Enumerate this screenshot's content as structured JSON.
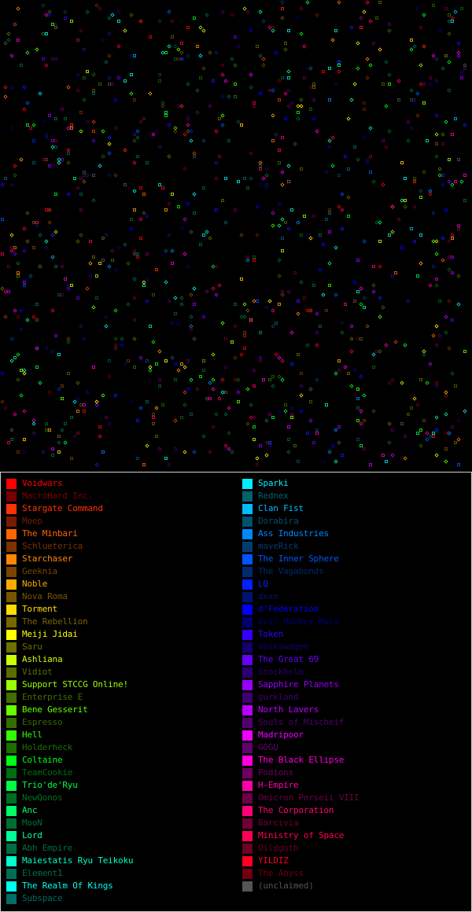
{
  "legend": {
    "left": [
      {
        "name": "Voidwars",
        "color": "#ff0000"
      },
      {
        "name": "MacroHard Inc.",
        "color": "#7a0000"
      },
      {
        "name": "Stargate Command",
        "color": "#ff3300"
      },
      {
        "name": "Moep",
        "color": "#7a1a00"
      },
      {
        "name": "The Minbari",
        "color": "#ff6600"
      },
      {
        "name": "Schlueterica",
        "color": "#7a3300"
      },
      {
        "name": "Starchaser",
        "color": "#ff8800"
      },
      {
        "name": "Geeknia",
        "color": "#7a4400"
      },
      {
        "name": "Noble",
        "color": "#ffaa00"
      },
      {
        "name": "Nova Roma",
        "color": "#7a5500"
      },
      {
        "name": "Torment",
        "color": "#ffdd00"
      },
      {
        "name": "The Rebellion",
        "color": "#7a6600"
      },
      {
        "name": "Meiji Jidai",
        "color": "#ffff00"
      },
      {
        "name": "Saru",
        "color": "#6e7000"
      },
      {
        "name": "Ashliana",
        "color": "#ccff00"
      },
      {
        "name": "Vidiot",
        "color": "#5a6e00"
      },
      {
        "name": "Support STCCG Online!",
        "color": "#99ff00"
      },
      {
        "name": "Enterprise E",
        "color": "#446e00"
      },
      {
        "name": "Bene Gesserit",
        "color": "#66ff00"
      },
      {
        "name": "Espresso",
        "color": "#336e00"
      },
      {
        "name": "Hell",
        "color": "#33ff00"
      },
      {
        "name": "Holderheck",
        "color": "#1f6e00"
      },
      {
        "name": "Coltaine",
        "color": "#00ff11"
      },
      {
        "name": "TeamCookie",
        "color": "#006e10"
      },
      {
        "name": "Trio'de'Ryu",
        "color": "#00ff44"
      },
      {
        "name": "NewQonos",
        "color": "#006e20"
      },
      {
        "name": "Anc",
        "color": "#00ff66"
      },
      {
        "name": "MooN",
        "color": "#006e33"
      },
      {
        "name": "Lord",
        "color": "#00ff99"
      },
      {
        "name": "Abh Empire",
        "color": "#006e44"
      },
      {
        "name": "Maiestatis Ryu Teikoku",
        "color": "#00ffcc"
      },
      {
        "name": "Element1",
        "color": "#006e55"
      },
      {
        "name": "The Realm Of Kings",
        "color": "#00ffee"
      },
      {
        "name": "Subspace",
        "color": "#006e66"
      }
    ],
    "right": [
      {
        "name": "Sparki",
        "color": "#00eeff"
      },
      {
        "name": "Rednex",
        "color": "#00626e"
      },
      {
        "name": "Clan Fist",
        "color": "#00bbff"
      },
      {
        "name": "Dorabira",
        "color": "#00506e"
      },
      {
        "name": "Ass Industries",
        "color": "#0088ff"
      },
      {
        "name": "maveRick",
        "color": "#003d6e"
      },
      {
        "name": "The Inner Sphere",
        "color": "#0055ff"
      },
      {
        "name": "The Vagabonds",
        "color": "#00296e"
      },
      {
        "name": "LQ",
        "color": "#0022ff"
      },
      {
        "name": "dxxo",
        "color": "#00146e"
      },
      {
        "name": "d'Federation",
        "color": "#0000ff"
      },
      {
        "name": "Evil Monkey Mojo",
        "color": "#00006e"
      },
      {
        "name": "Token",
        "color": "#3300ff"
      },
      {
        "name": "Volkswagen",
        "color": "#14006e"
      },
      {
        "name": "The Great 69",
        "color": "#6600ff"
      },
      {
        "name": "Stockholm",
        "color": "#29006e"
      },
      {
        "name": "Sapphire Planets",
        "color": "#9900ff"
      },
      {
        "name": "gurkland",
        "color": "#3d006e"
      },
      {
        "name": "North Lavers",
        "color": "#bb00ff"
      },
      {
        "name": "Souls of Mischeif",
        "color": "#50006e"
      },
      {
        "name": "Madripoor",
        "color": "#ee00ff"
      },
      {
        "name": "GOGU",
        "color": "#62006e"
      },
      {
        "name": "The Black Ellipse",
        "color": "#ff00dd"
      },
      {
        "name": "Podions",
        "color": "#6e005e"
      },
      {
        "name": "H-Empire",
        "color": "#ff00aa"
      },
      {
        "name": "Omicron Perseii VIII",
        "color": "#6e004a"
      },
      {
        "name": "The Corporation",
        "color": "#ff0077"
      },
      {
        "name": "Barcivia",
        "color": "#6e0035"
      },
      {
        "name": "Ministry of Space",
        "color": "#ff0055"
      },
      {
        "name": "Oildgoth",
        "color": "#6e0022"
      },
      {
        "name": "YILDIZ",
        "color": "#ff0022"
      },
      {
        "name": "The Abyss",
        "color": "#6e0011"
      },
      {
        "name": "(unclaimed)",
        "color": "#555555"
      }
    ]
  }
}
